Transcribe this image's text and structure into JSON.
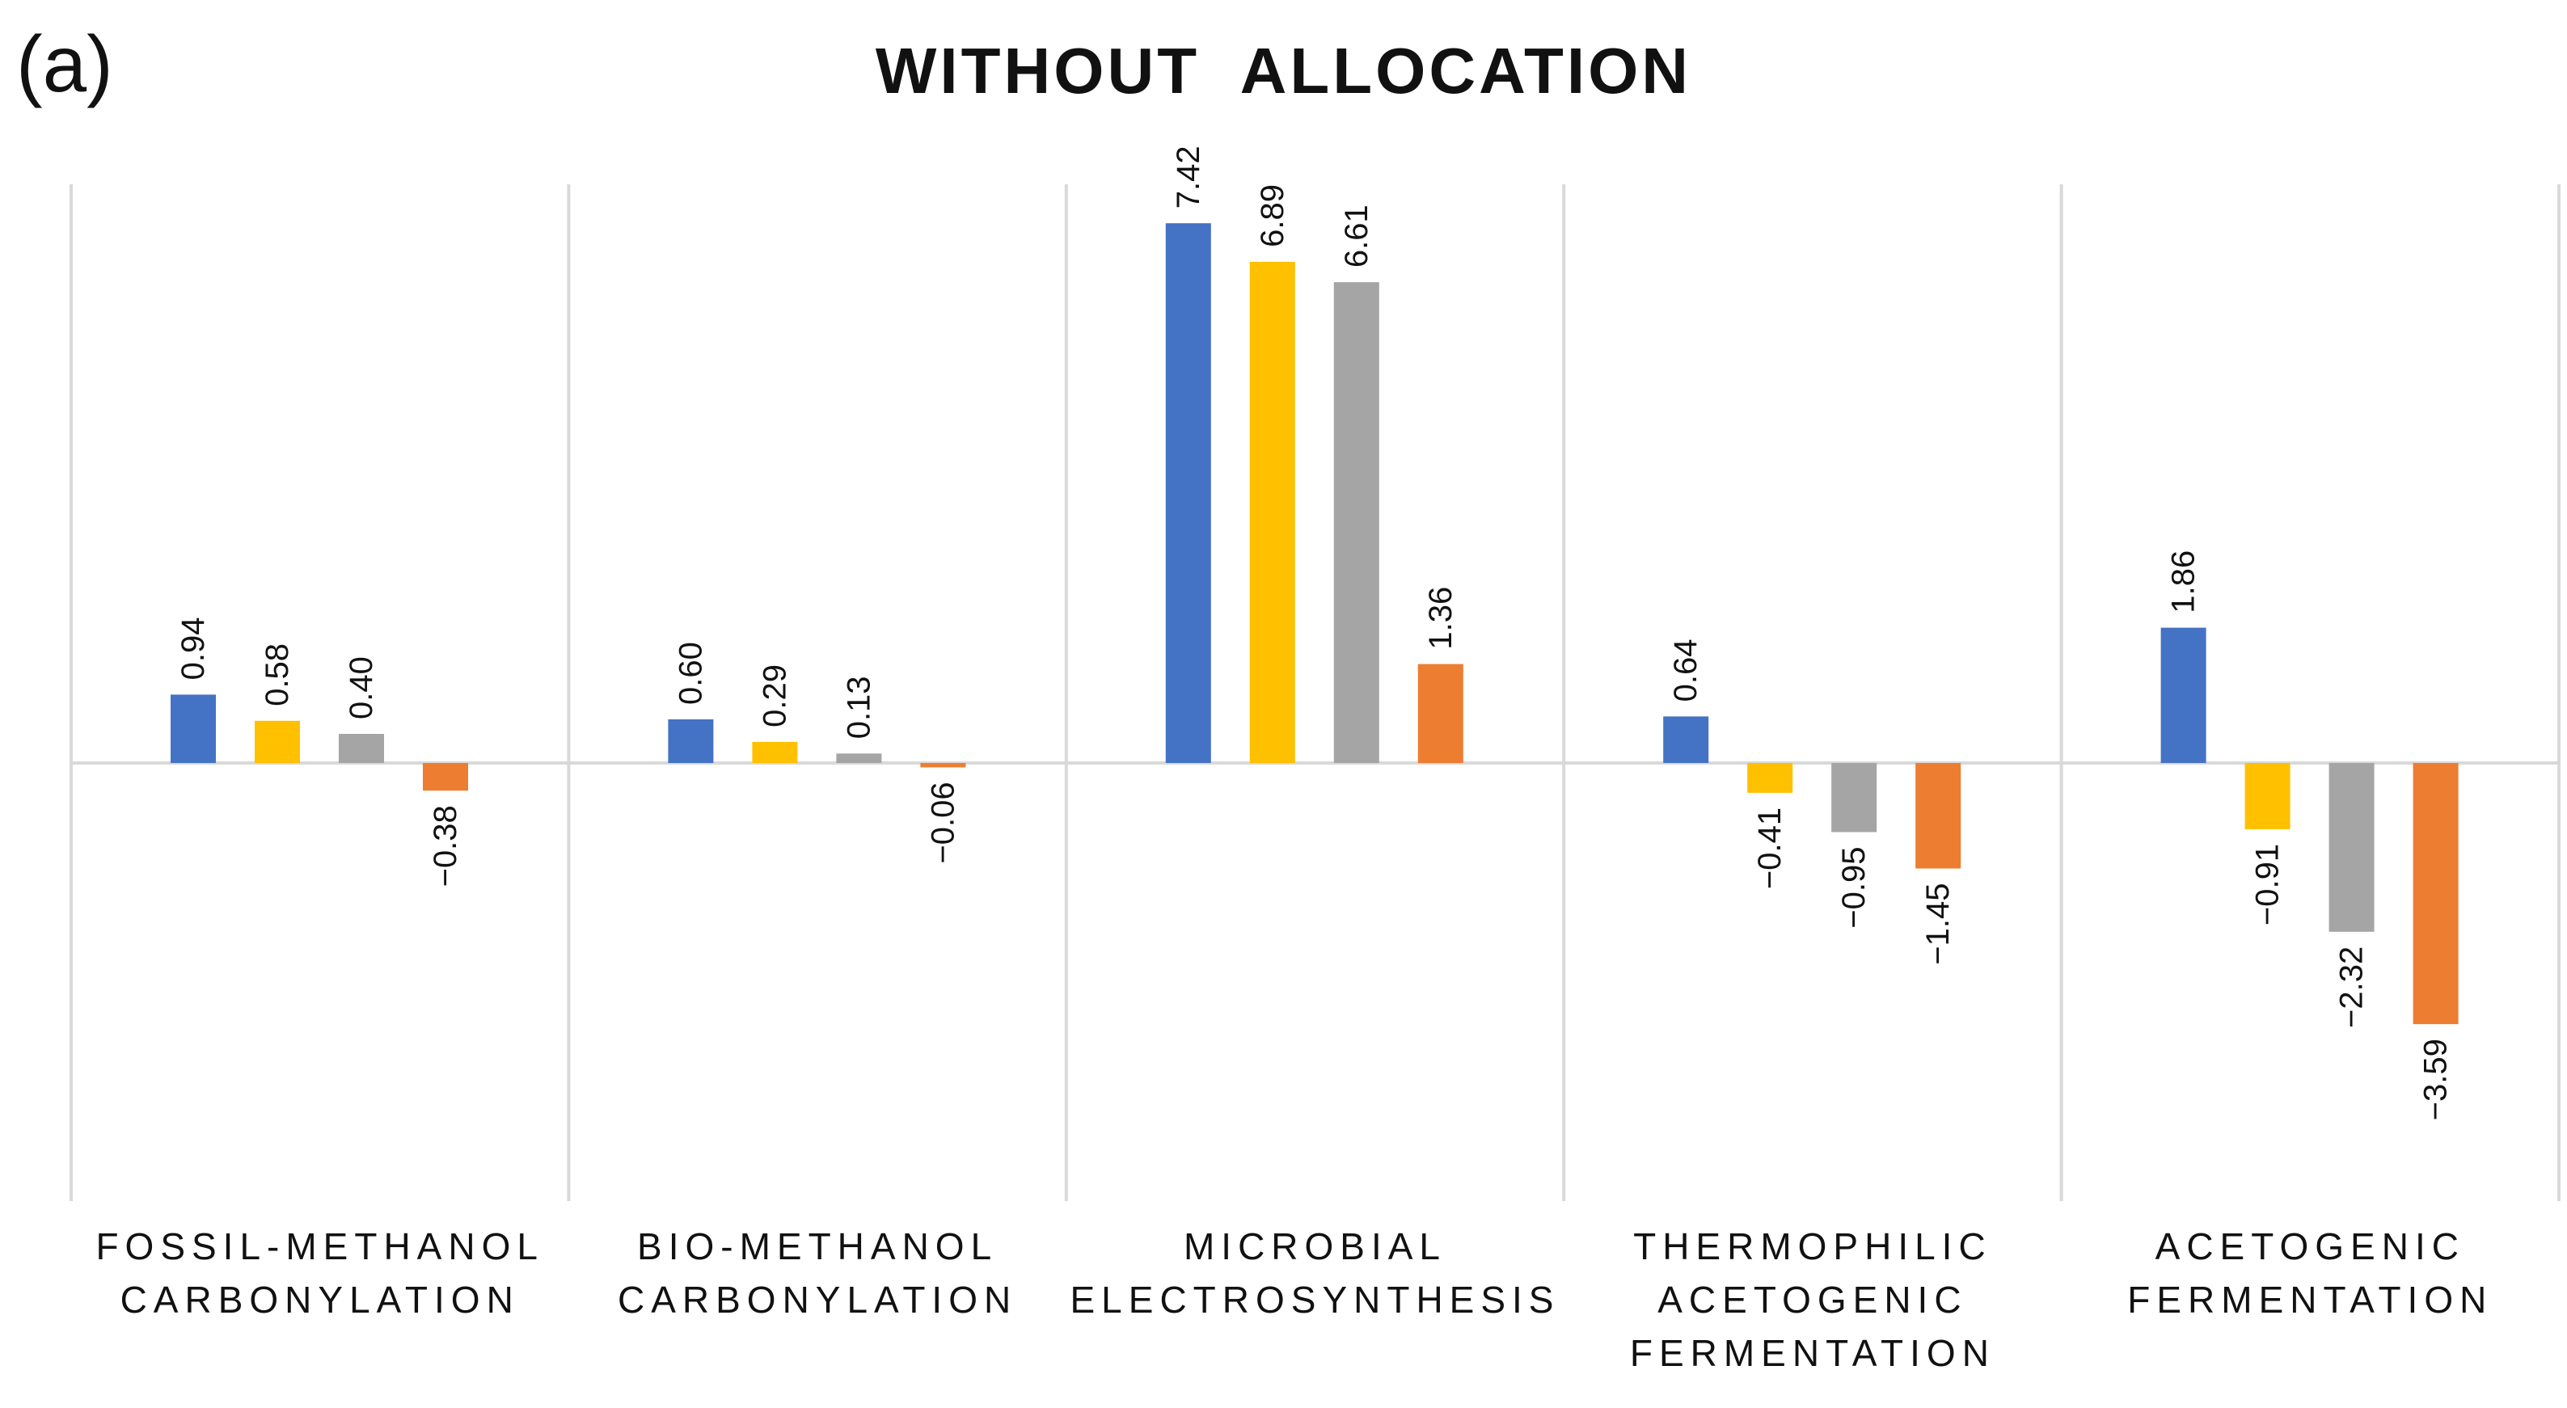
{
  "panel_label": "(a)",
  "chart_data": {
    "type": "bar",
    "title": "WITHOUT  ALLOCATION",
    "xlabel": "",
    "ylabel": "",
    "ylim": [
      -5.2,
      8.0
    ],
    "grid": false,
    "legend": "none",
    "categories": [
      [
        "FOSSIL-METHANOL",
        "CARBONYLATION"
      ],
      [
        "BIO-METHANOL",
        "CARBONYLATION"
      ],
      [
        "MICROBIAL",
        "ELECTROSYNTHESIS"
      ],
      [
        "THERMOPHILIC",
        "ACETOGENIC",
        "FERMENTATION"
      ],
      [
        "ACETOGENIC",
        "FERMENTATION"
      ]
    ],
    "series": [
      {
        "name": "series-1",
        "color": "#4472C4",
        "values": [
          0.94,
          0.6,
          7.42,
          0.64,
          1.86
        ],
        "labels": [
          "0.94",
          "0.60",
          "7.42",
          "0.64",
          "1.86"
        ]
      },
      {
        "name": "series-2",
        "color": "#FFC000",
        "values": [
          0.58,
          0.29,
          6.89,
          -0.41,
          -0.91
        ],
        "labels": [
          "0.58",
          "0.29",
          "6.89",
          "−0.41",
          "−0.91"
        ]
      },
      {
        "name": "series-3",
        "color": "#A5A5A5",
        "values": [
          0.4,
          0.13,
          6.61,
          -0.95,
          -2.32
        ],
        "labels": [
          "0.40",
          "0.13",
          "6.61",
          "−0.95",
          "−2.32"
        ]
      },
      {
        "name": "series-4",
        "color": "#ED7D31",
        "values": [
          -0.38,
          -0.06,
          1.36,
          -1.45,
          -3.59
        ],
        "labels": [
          "−0.38",
          "−0.06",
          "1.36",
          "−1.45",
          "−3.59"
        ]
      }
    ]
  }
}
